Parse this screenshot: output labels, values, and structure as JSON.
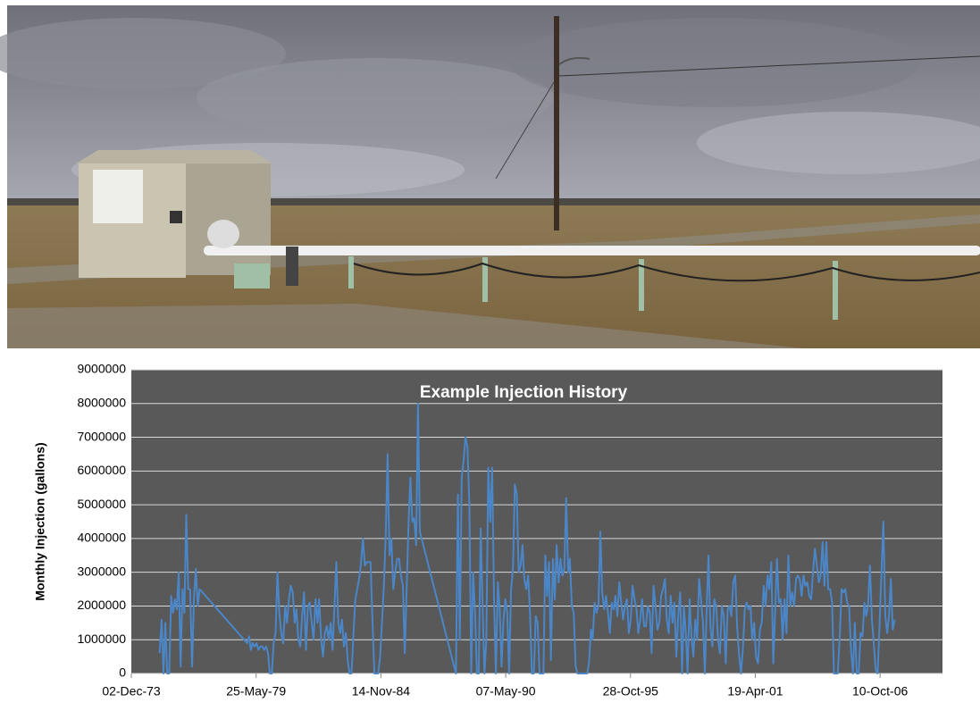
{
  "chart_data": {
    "type": "line",
    "title": "Example Injection History",
    "y_label": "Monthly Injection (gallons)",
    "color": "#4a86c8",
    "grid": true,
    "xlim": [
      "1973-12-02",
      "2009-07-06"
    ],
    "xticks": [
      {
        "value": "1973-12-02",
        "label": "02-Dec-73"
      },
      {
        "value": "1979-05-25",
        "label": "25-May-79"
      },
      {
        "value": "1984-11-14",
        "label": "14-Nov-84"
      },
      {
        "value": "1990-05-07",
        "label": "07-May-90"
      },
      {
        "value": "1995-10-28",
        "label": "28-Oct-95"
      },
      {
        "value": "2001-04-19",
        "label": "19-Apr-01"
      },
      {
        "value": "2006-10-10",
        "label": "10-Oct-06"
      }
    ],
    "ylim": [
      0,
      9000000
    ],
    "yticks": [
      0,
      1000000,
      2000000,
      3000000,
      4000000,
      5000000,
      6000000,
      7000000,
      8000000,
      9000000
    ],
    "x": [
      "1975-03-01",
      "1975-04-01",
      "1975-05-01",
      "1975-06-01",
      "1975-07-01",
      "1975-08-01",
      "1975-09-01",
      "1975-10-01",
      "1975-11-01",
      "1975-12-01",
      "1976-01-01",
      "1976-02-01",
      "1976-03-01",
      "1976-04-01",
      "1976-05-01",
      "1976-06-01",
      "1976-07-01",
      "1976-08-01",
      "1976-09-01",
      "1976-10-01",
      "1976-11-01",
      "1976-12-01",
      "1979-01-01",
      "1979-02-01",
      "1979-03-01",
      "1979-04-01",
      "1979-05-01",
      "1979-06-01",
      "1979-07-01",
      "1979-08-01",
      "1979-09-01",
      "1979-10-01",
      "1979-11-01",
      "1979-12-01",
      "1980-01-01",
      "1980-02-01",
      "1980-03-01",
      "1980-04-01",
      "1980-05-01",
      "1980-06-01",
      "1980-07-01",
      "1980-08-01",
      "1980-09-01",
      "1980-10-01",
      "1980-11-01",
      "1980-12-01",
      "1981-01-01",
      "1981-02-01",
      "1981-03-01",
      "1981-04-01",
      "1981-05-01",
      "1981-06-01",
      "1981-07-01",
      "1981-08-01",
      "1981-09-01",
      "1981-10-01",
      "1981-11-01",
      "1981-12-01",
      "1982-01-01",
      "1982-02-01",
      "1982-03-01",
      "1982-04-01",
      "1982-05-01",
      "1982-06-01",
      "1982-07-01",
      "1982-08-01",
      "1982-09-01",
      "1982-10-01",
      "1982-11-01",
      "1982-12-01",
      "1983-01-01",
      "1983-02-01",
      "1983-03-01",
      "1983-04-01",
      "1983-05-01",
      "1983-06-01",
      "1983-07-01",
      "1983-08-01",
      "1983-09-01",
      "1983-10-01",
      "1983-11-01",
      "1983-12-01",
      "1984-01-01",
      "1984-02-01",
      "1984-03-01",
      "1984-04-01",
      "1984-05-01",
      "1984-06-01",
      "1984-07-01",
      "1984-08-01",
      "1984-09-01",
      "1984-10-01",
      "1984-11-01",
      "1984-12-01",
      "1985-01-01",
      "1985-02-01",
      "1985-03-01",
      "1985-04-01",
      "1985-05-01",
      "1985-06-01",
      "1985-07-01",
      "1985-08-01",
      "1985-09-01",
      "1985-10-01",
      "1985-11-01",
      "1985-12-01",
      "1986-01-01",
      "1986-02-01",
      "1986-03-01",
      "1986-04-01",
      "1986-05-01",
      "1986-06-01",
      "1986-07-01",
      "1986-08-01",
      "1988-02-01",
      "1988-03-01",
      "1988-04-01",
      "1988-05-01",
      "1988-06-01",
      "1988-07-01",
      "1988-08-01",
      "1988-09-01",
      "1988-10-01",
      "1988-11-01",
      "1988-12-01",
      "1989-01-01",
      "1989-02-01",
      "1989-03-01",
      "1989-04-01",
      "1989-05-01",
      "1989-06-01",
      "1989-07-01",
      "1989-08-01",
      "1989-09-01",
      "1989-10-01",
      "1989-11-01",
      "1989-12-01",
      "1990-01-01",
      "1990-02-01",
      "1990-03-01",
      "1990-04-01",
      "1990-05-01",
      "1990-06-01",
      "1990-07-01",
      "1990-08-01",
      "1990-09-01",
      "1990-10-01",
      "1990-11-01",
      "1990-12-01",
      "1991-01-01",
      "1991-02-01",
      "1991-03-01",
      "1991-04-01",
      "1991-05-01",
      "1991-06-01",
      "1991-07-01",
      "1991-08-01",
      "1991-09-01",
      "1991-10-01",
      "1991-11-01",
      "1991-12-01",
      "1992-01-01",
      "1992-02-01",
      "1992-03-01",
      "1992-04-01",
      "1992-05-01",
      "1992-06-01",
      "1992-07-01",
      "1992-08-01",
      "1992-09-01",
      "1992-10-01",
      "1992-11-01",
      "1992-12-01",
      "1993-01-01",
      "1993-02-01",
      "1993-03-01",
      "1993-04-01",
      "1993-05-01",
      "1993-06-01",
      "1993-07-01",
      "1993-08-01",
      "1993-09-01",
      "1993-10-01",
      "1993-11-01",
      "1993-12-01",
      "1994-01-01",
      "1994-02-01",
      "1994-03-01",
      "1994-04-01",
      "1994-05-01",
      "1994-06-01",
      "1994-07-01",
      "1994-08-01",
      "1994-09-01",
      "1994-10-01",
      "1994-11-01",
      "1994-12-01",
      "1995-01-01",
      "1995-02-01",
      "1995-03-01",
      "1995-04-01",
      "1995-05-01",
      "1995-06-01",
      "1995-07-01",
      "1995-08-01",
      "1995-09-01",
      "1995-10-01",
      "1995-11-01",
      "1995-12-01",
      "1996-01-01",
      "1996-02-01",
      "1996-03-01",
      "1996-04-01",
      "1996-05-01",
      "1996-06-01",
      "1996-07-01",
      "1996-08-01",
      "1996-09-01",
      "1996-10-01",
      "1996-11-01",
      "1996-12-01",
      "1997-01-01",
      "1997-02-01",
      "1997-03-01",
      "1997-04-01",
      "1997-05-01",
      "1997-06-01",
      "1997-07-01",
      "1997-08-01",
      "1997-09-01",
      "1997-10-01",
      "1997-11-01",
      "1997-12-01",
      "1998-01-01",
      "1998-02-01",
      "1998-03-01",
      "1998-04-01",
      "1998-05-01",
      "1998-06-01",
      "1998-07-01",
      "1998-08-01",
      "1998-09-01",
      "1998-10-01",
      "1998-11-01",
      "1998-12-01",
      "1999-01-01",
      "1999-02-01",
      "1999-03-01",
      "1999-04-01",
      "1999-05-01",
      "1999-06-01",
      "1999-07-01",
      "1999-08-01",
      "1999-09-01",
      "1999-10-01",
      "1999-11-01",
      "1999-12-01",
      "2000-01-01",
      "2000-02-01",
      "2000-03-01",
      "2000-04-01",
      "2000-05-01",
      "2000-06-01",
      "2000-07-01",
      "2000-08-01",
      "2000-09-01",
      "2000-10-01",
      "2000-11-01",
      "2000-12-01",
      "2001-01-01",
      "2001-02-01",
      "2001-03-01",
      "2001-04-01",
      "2001-05-01",
      "2001-06-01",
      "2001-07-01",
      "2001-08-01",
      "2001-09-01",
      "2001-10-01",
      "2001-11-01",
      "2001-12-01",
      "2002-01-01",
      "2002-02-01",
      "2002-03-01",
      "2002-04-01",
      "2002-05-01",
      "2002-06-01",
      "2002-07-01",
      "2002-08-01",
      "2002-09-01",
      "2002-10-01",
      "2002-11-01",
      "2002-12-01",
      "2003-01-01",
      "2003-02-01",
      "2003-03-01",
      "2003-04-01",
      "2003-05-01",
      "2003-06-01",
      "2003-07-01",
      "2003-08-01",
      "2003-09-01",
      "2003-10-01",
      "2003-11-01",
      "2003-12-01",
      "2004-01-01",
      "2004-02-01",
      "2004-03-01",
      "2004-04-01",
      "2004-05-01",
      "2004-06-01",
      "2004-07-01",
      "2004-08-01",
      "2004-09-01",
      "2004-10-01",
      "2004-11-01",
      "2004-12-01",
      "2005-01-01",
      "2005-02-01",
      "2005-03-01",
      "2005-04-01",
      "2005-05-01",
      "2005-06-01",
      "2005-07-01",
      "2005-08-01",
      "2005-09-01",
      "2005-10-01",
      "2005-11-01",
      "2005-12-01",
      "2006-01-01",
      "2006-02-01",
      "2006-03-01",
      "2006-04-01",
      "2006-05-01",
      "2006-06-01",
      "2006-07-01",
      "2006-08-01",
      "2006-09-01",
      "2006-10-01",
      "2006-11-01",
      "2006-12-01",
      "2007-01-01",
      "2007-02-01",
      "2007-03-01",
      "2007-04-01",
      "2007-05-01",
      "2007-06-01"
    ],
    "values": [
      600000,
      1600000,
      0,
      1500000,
      0,
      0,
      2300000,
      1800000,
      2200000,
      1900000,
      3000000,
      200000,
      2500000,
      1800000,
      4700000,
      2500000,
      2500000,
      200000,
      2200000,
      3100000,
      2000000,
      2500000,
      900000,
      1100000,
      700000,
      900000,
      800000,
      900000,
      700000,
      800000,
      800000,
      700000,
      800000,
      600000,
      0,
      0,
      900000,
      1200000,
      3000000,
      1800000,
      1200000,
      900000,
      2000000,
      1500000,
      2200000,
      2600000,
      2400000,
      1500000,
      1900000,
      1000000,
      800000,
      1700000,
      2400000,
      700000,
      2000000,
      2100000,
      1500000,
      1000000,
      2200000,
      1500000,
      2200000,
      1000000,
      500000,
      1200000,
      1400000,
      1000000,
      1500000,
      700000,
      2000000,
      3300000,
      1500000,
      1200000,
      1600000,
      800000,
      1200000,
      400000,
      0,
      0,
      1200000,
      2200000,
      2500000,
      2800000,
      3300000,
      4000000,
      3200000,
      3300000,
      3300000,
      3300000,
      1600000,
      0,
      0,
      0,
      500000,
      1500000,
      2600000,
      4200000,
      6500000,
      3500000,
      4000000,
      2500000,
      3000000,
      3400000,
      3400000,
      2900000,
      2600000,
      600000,
      2500000,
      4500000,
      5800000,
      4500000,
      4600000,
      3800000,
      8000000,
      4200000,
      200000,
      0,
      5300000,
      1000000,
      5800000,
      6300000,
      7000000,
      6700000,
      5000000,
      0,
      3000000,
      1800000,
      0,
      0,
      4300000,
      2000000,
      0,
      1000000,
      6100000,
      4500000,
      6100000,
      2200000,
      0,
      2700000,
      1900000,
      200000,
      1600000,
      2200000,
      1800000,
      0,
      2500000,
      3100000,
      5600000,
      5300000,
      3000000,
      3200000,
      3800000,
      2800000,
      2500000,
      2900000,
      1800000,
      0,
      0,
      1700000,
      1500000,
      0,
      0,
      0,
      3500000,
      2300000,
      3300000,
      400000,
      3400000,
      2200000,
      3800000,
      2700000,
      3400000,
      2900000,
      3100000,
      5200000,
      3000000,
      3400000,
      2000000,
      1800000,
      200000,
      0,
      0,
      0,
      0,
      0,
      0,
      300000,
      1300000,
      1000000,
      2100000,
      1800000,
      2000000,
      4200000,
      2400000,
      1900000,
      2300000,
      1800000,
      1200000,
      2100000,
      1900000,
      2300000,
      1700000,
      2700000,
      2100000,
      1600000,
      2000000,
      2200000,
      1200000,
      1600000,
      2600000,
      2200000,
      1900000,
      1200000,
      1600000,
      2200000,
      1400000,
      1400000,
      2000000,
      1800000,
      600000,
      2600000,
      2000000,
      1300000,
      1500000,
      2300000,
      2500000,
      2800000,
      1600000,
      1200000,
      2300000,
      1500000,
      2100000,
      500000,
      1700000,
      2400000,
      0,
      2000000,
      1200000,
      0,
      2200000,
      1100000,
      500000,
      1600000,
      1000000,
      2800000,
      2200000,
      1500000,
      0,
      1900000,
      3500000,
      1400000,
      800000,
      2200000,
      2000000,
      1000000,
      600000,
      2000000,
      1700000,
      300000,
      1900000,
      2000000,
      1700000,
      2700000,
      2900000,
      1400000,
      600000,
      0,
      700000,
      1900000,
      2100000,
      1900000,
      2000000,
      1000000,
      1500000,
      500000,
      300000,
      1300000,
      1500000,
      2600000,
      2000000,
      2900000,
      2500000,
      3300000,
      300000,
      1700000,
      3400000,
      2100000,
      2200000,
      1000000,
      2200000,
      1200000,
      3500000,
      2000000,
      2400000,
      2000000,
      2800000,
      2900000,
      2800000,
      2300000,
      2900000,
      2600000,
      2700000,
      2300000,
      2200000,
      3000000,
      3700000,
      3200000,
      2700000,
      2900000,
      3900000,
      2600000,
      3900000,
      2500000,
      2500000,
      2100000,
      0,
      0,
      0,
      1100000,
      2500000,
      2400000,
      2500000,
      2100000,
      2000000,
      700000,
      0,
      1500000,
      0,
      0,
      1200000,
      1100000,
      2100000,
      1700000,
      2000000,
      3200000,
      1600000,
      900000,
      100000,
      0,
      1400000,
      3000000,
      4500000,
      1700000,
      1200000,
      1700000,
      2800000,
      1300000,
      1600000
    ]
  }
}
